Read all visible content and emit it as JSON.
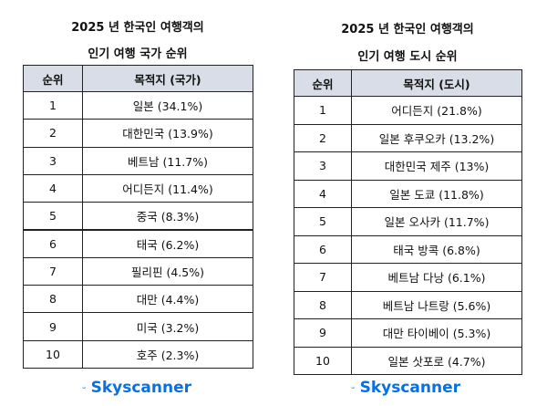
{
  "tables": [
    {
      "title": [
        "2025 년 한국인 여행객의",
        "인기 여행 국가 순위"
      ],
      "header": [
        "순위",
        "목적지 (국가)"
      ],
      "rows": [
        [
          "1",
          "일본 (34.1%)"
        ],
        [
          "2",
          "대한민국 (13.9%)"
        ],
        [
          "3",
          "베트남 (11.7%)"
        ],
        [
          "4",
          "어디든지 (11.4%)"
        ],
        [
          "5",
          "중국 (8.3%)"
        ],
        [
          "6",
          "태국 (6.2%)"
        ],
        [
          "7",
          "필리핀 (4.5%)"
        ],
        [
          "8",
          "대만 (4.4%)"
        ],
        [
          "9",
          "미국 (3.2%)"
        ],
        [
          "10",
          "호주 (2.3%)"
        ]
      ],
      "brand": "Skyscanner"
    },
    {
      "title": [
        "2025 년 한국인 여행객의",
        "인기 여행 도시 순위"
      ],
      "header": [
        "순위",
        "목적지 (도시)"
      ],
      "rows": [
        [
          "1",
          "어디든지 (21.8%)"
        ],
        [
          "2",
          "일본 후쿠오카 (13.2%)"
        ],
        [
          "3",
          "대한민국 제주 (13%)"
        ],
        [
          "4",
          "일본 도쿄 (11.8%)"
        ],
        [
          "5",
          "일본 오사카 (11.7%)"
        ],
        [
          "6",
          "태국 방콕 (6.8%)"
        ],
        [
          "7",
          "베트남 다낭 (6.1%)"
        ],
        [
          "8",
          "베트남 나트랑 (5.6%)"
        ],
        [
          "9",
          "대만 타이베이 (5.3%)"
        ],
        [
          "10",
          "일본 삿포로 (4.7%)"
        ]
      ],
      "brand": "Skyscanner"
    }
  ]
}
